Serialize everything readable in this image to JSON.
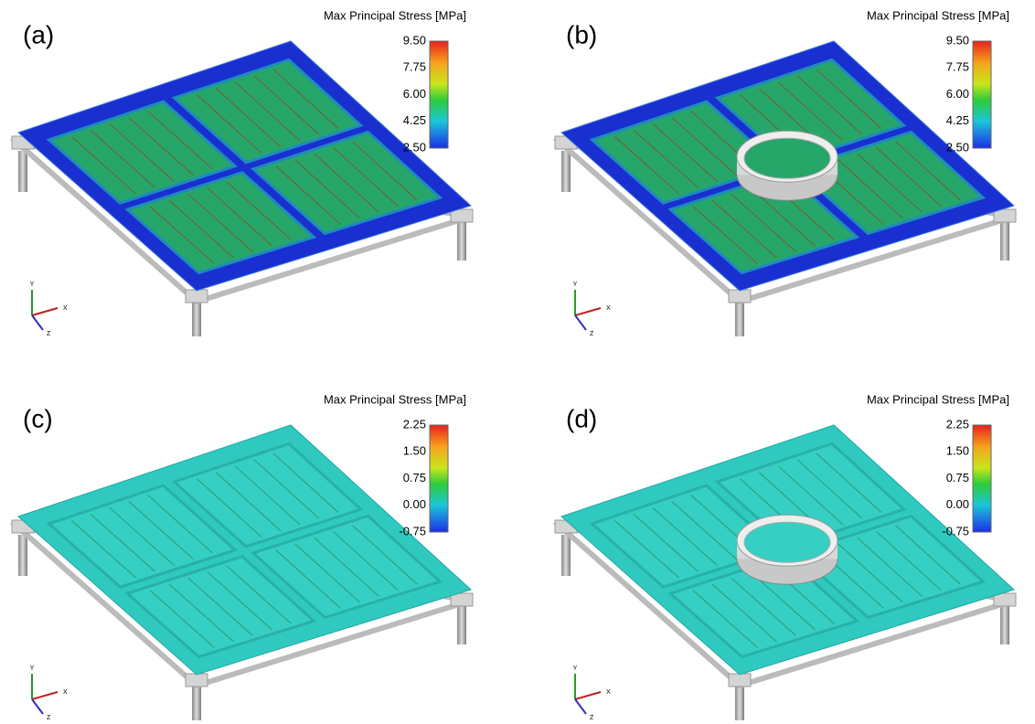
{
  "panels": [
    {
      "label": "(a)",
      "colorbar": {
        "title": "Max Principal Stress [MPa]",
        "ticks": [
          {
            "value": 9.5,
            "label": "9.50"
          },
          7.75,
          {
            "value": 6.0,
            "label": "6.00"
          },
          4.25,
          {
            "value": 2.5,
            "label": "2.50"
          }
        ]
      }
    },
    {
      "label": "(b)",
      "colorbar": {
        "title": "Max Principal Stress [MPa]",
        "ticks": [
          {
            "value": 9.5,
            "label": "9.50"
          },
          7.75,
          {
            "value": 6.0,
            "label": "6.00"
          },
          4.25,
          {
            "value": 2.5,
            "label": "2.50"
          }
        ]
      }
    },
    {
      "label": "(c)",
      "colorbar": {
        "title": "Max Principal Stress [MPa]",
        "ticks": [
          2.25,
          {
            "value": 1.5,
            "label": "1.50"
          },
          0.75,
          {
            "value": 0.0,
            "label": "0.00"
          },
          -0.75
        ]
      }
    },
    {
      "label": "(d)",
      "colorbar": {
        "title": "Max Principal Stress [MPa]",
        "ticks": [
          2.25,
          {
            "value": 1.5,
            "label": "1.50"
          },
          0.75,
          {
            "value": 0.0,
            "label": "0.00"
          },
          -0.75
        ]
      }
    }
  ],
  "triad": {
    "x": "X",
    "y": "Y",
    "z": "Z"
  }
}
